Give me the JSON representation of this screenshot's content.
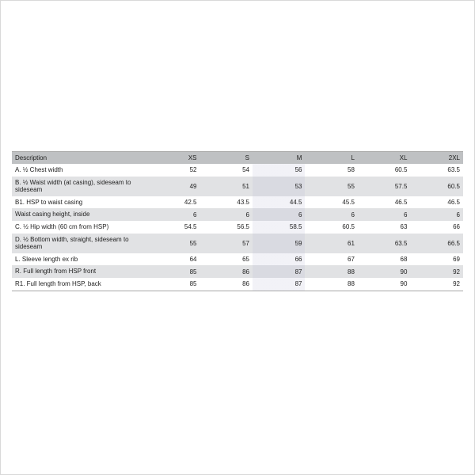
{
  "table": {
    "type": "table",
    "background_color": "#ffffff",
    "frame_border_color": "#d9d9d9",
    "header_bg": "#bfc1c3",
    "row_bg_even": "#e1e2e4",
    "row_bg_odd": "#ffffff",
    "text_color": "#222222",
    "border_color": "#a8a8a8",
    "m_column_tint": "rgba(180,180,210,0.18)",
    "font_family": "Arial",
    "header_fontsize_pt": 6,
    "body_fontsize_pt": 6,
    "col_widths_pct": [
      30,
      11.666,
      11.666,
      11.666,
      11.666,
      11.666,
      11.666
    ],
    "text_align_first": "left",
    "text_align_rest": "right",
    "columns": [
      "Description",
      "XS",
      "S",
      "M",
      "L",
      "XL",
      "2XL"
    ],
    "rows": [
      [
        "A. ½ Chest width",
        "52",
        "54",
        "56",
        "58",
        "60.5",
        "63.5"
      ],
      [
        "B. ½ Waist width (at casing), sideseam to sideseam",
        "49",
        "51",
        "53",
        "55",
        "57.5",
        "60.5"
      ],
      [
        "B1. HSP to waist casing",
        "42.5",
        "43.5",
        "44.5",
        "45.5",
        "46.5",
        "46.5"
      ],
      [
        "Waist casing height, inside",
        "6",
        "6",
        "6",
        "6",
        "6",
        "6"
      ],
      [
        "C. ½ Hip width (60 cm from HSP)",
        "54.5",
        "56.5",
        "58.5",
        "60.5",
        "63",
        "66"
      ],
      [
        "D. ½ Bottom width, straight, sideseam to sideseam",
        "55",
        "57",
        "59",
        "61",
        "63.5",
        "66.5"
      ],
      [
        "L. Sleeve length ex rib",
        "64",
        "65",
        "66",
        "67",
        "68",
        "69"
      ],
      [
        "R. Full length from HSP front",
        "85",
        "86",
        "87",
        "88",
        "90",
        "92"
      ],
      [
        "R1. Full length from HSP, back",
        "85",
        "86",
        "87",
        "88",
        "90",
        "92"
      ]
    ]
  }
}
